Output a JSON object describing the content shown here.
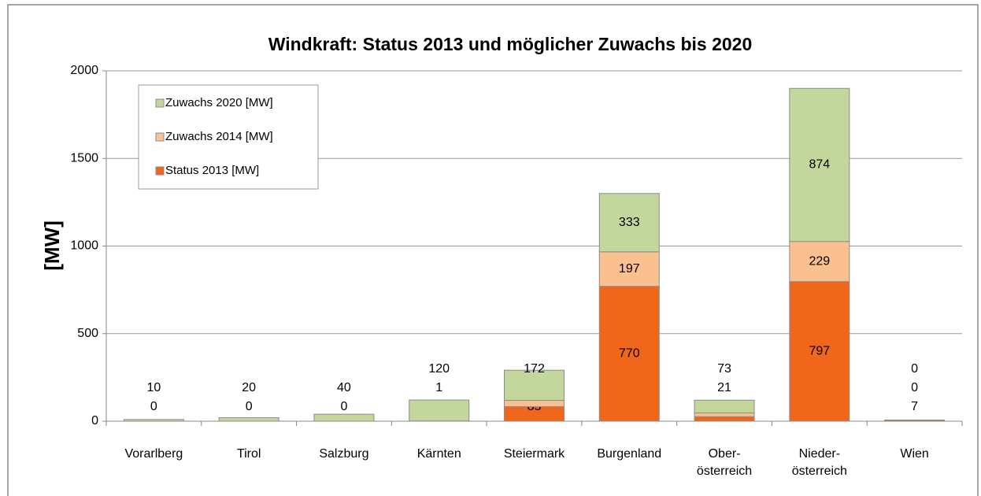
{
  "chart_data": {
    "type": "stacked_bar",
    "title": "Windkraft: Status 2013 und möglicher Zuwachs bis 2020",
    "y_label": "[MW]",
    "categories": [
      "Vorarlberg",
      "Tirol",
      "Salzburg",
      "Kärnten",
      "Steiermark",
      "Burgenland",
      "Ober-\nösterreich",
      "Nieder-\nösterreich",
      "Wien"
    ],
    "series": [
      {
        "name": "Status 2013 [MW]",
        "color": "#f0661a",
        "values": [
          null,
          null,
          null,
          0,
          83,
          770,
          26,
          797,
          7
        ]
      },
      {
        "name": "Zuwachs 2014 [MW]",
        "color": "#fac090",
        "values": [
          0,
          0,
          0,
          1,
          36,
          197,
          21,
          229,
          0
        ]
      },
      {
        "name": "Zuwachs 2020 [MW]",
        "color": "#c3d69b",
        "values": [
          10,
          20,
          40,
          120,
          172,
          333,
          73,
          874,
          0
        ]
      }
    ],
    "ylim": [
      0,
      2000
    ],
    "yticks": [
      0,
      500,
      1000,
      1500,
      2000
    ],
    "grid": true,
    "legend": "top-left"
  }
}
